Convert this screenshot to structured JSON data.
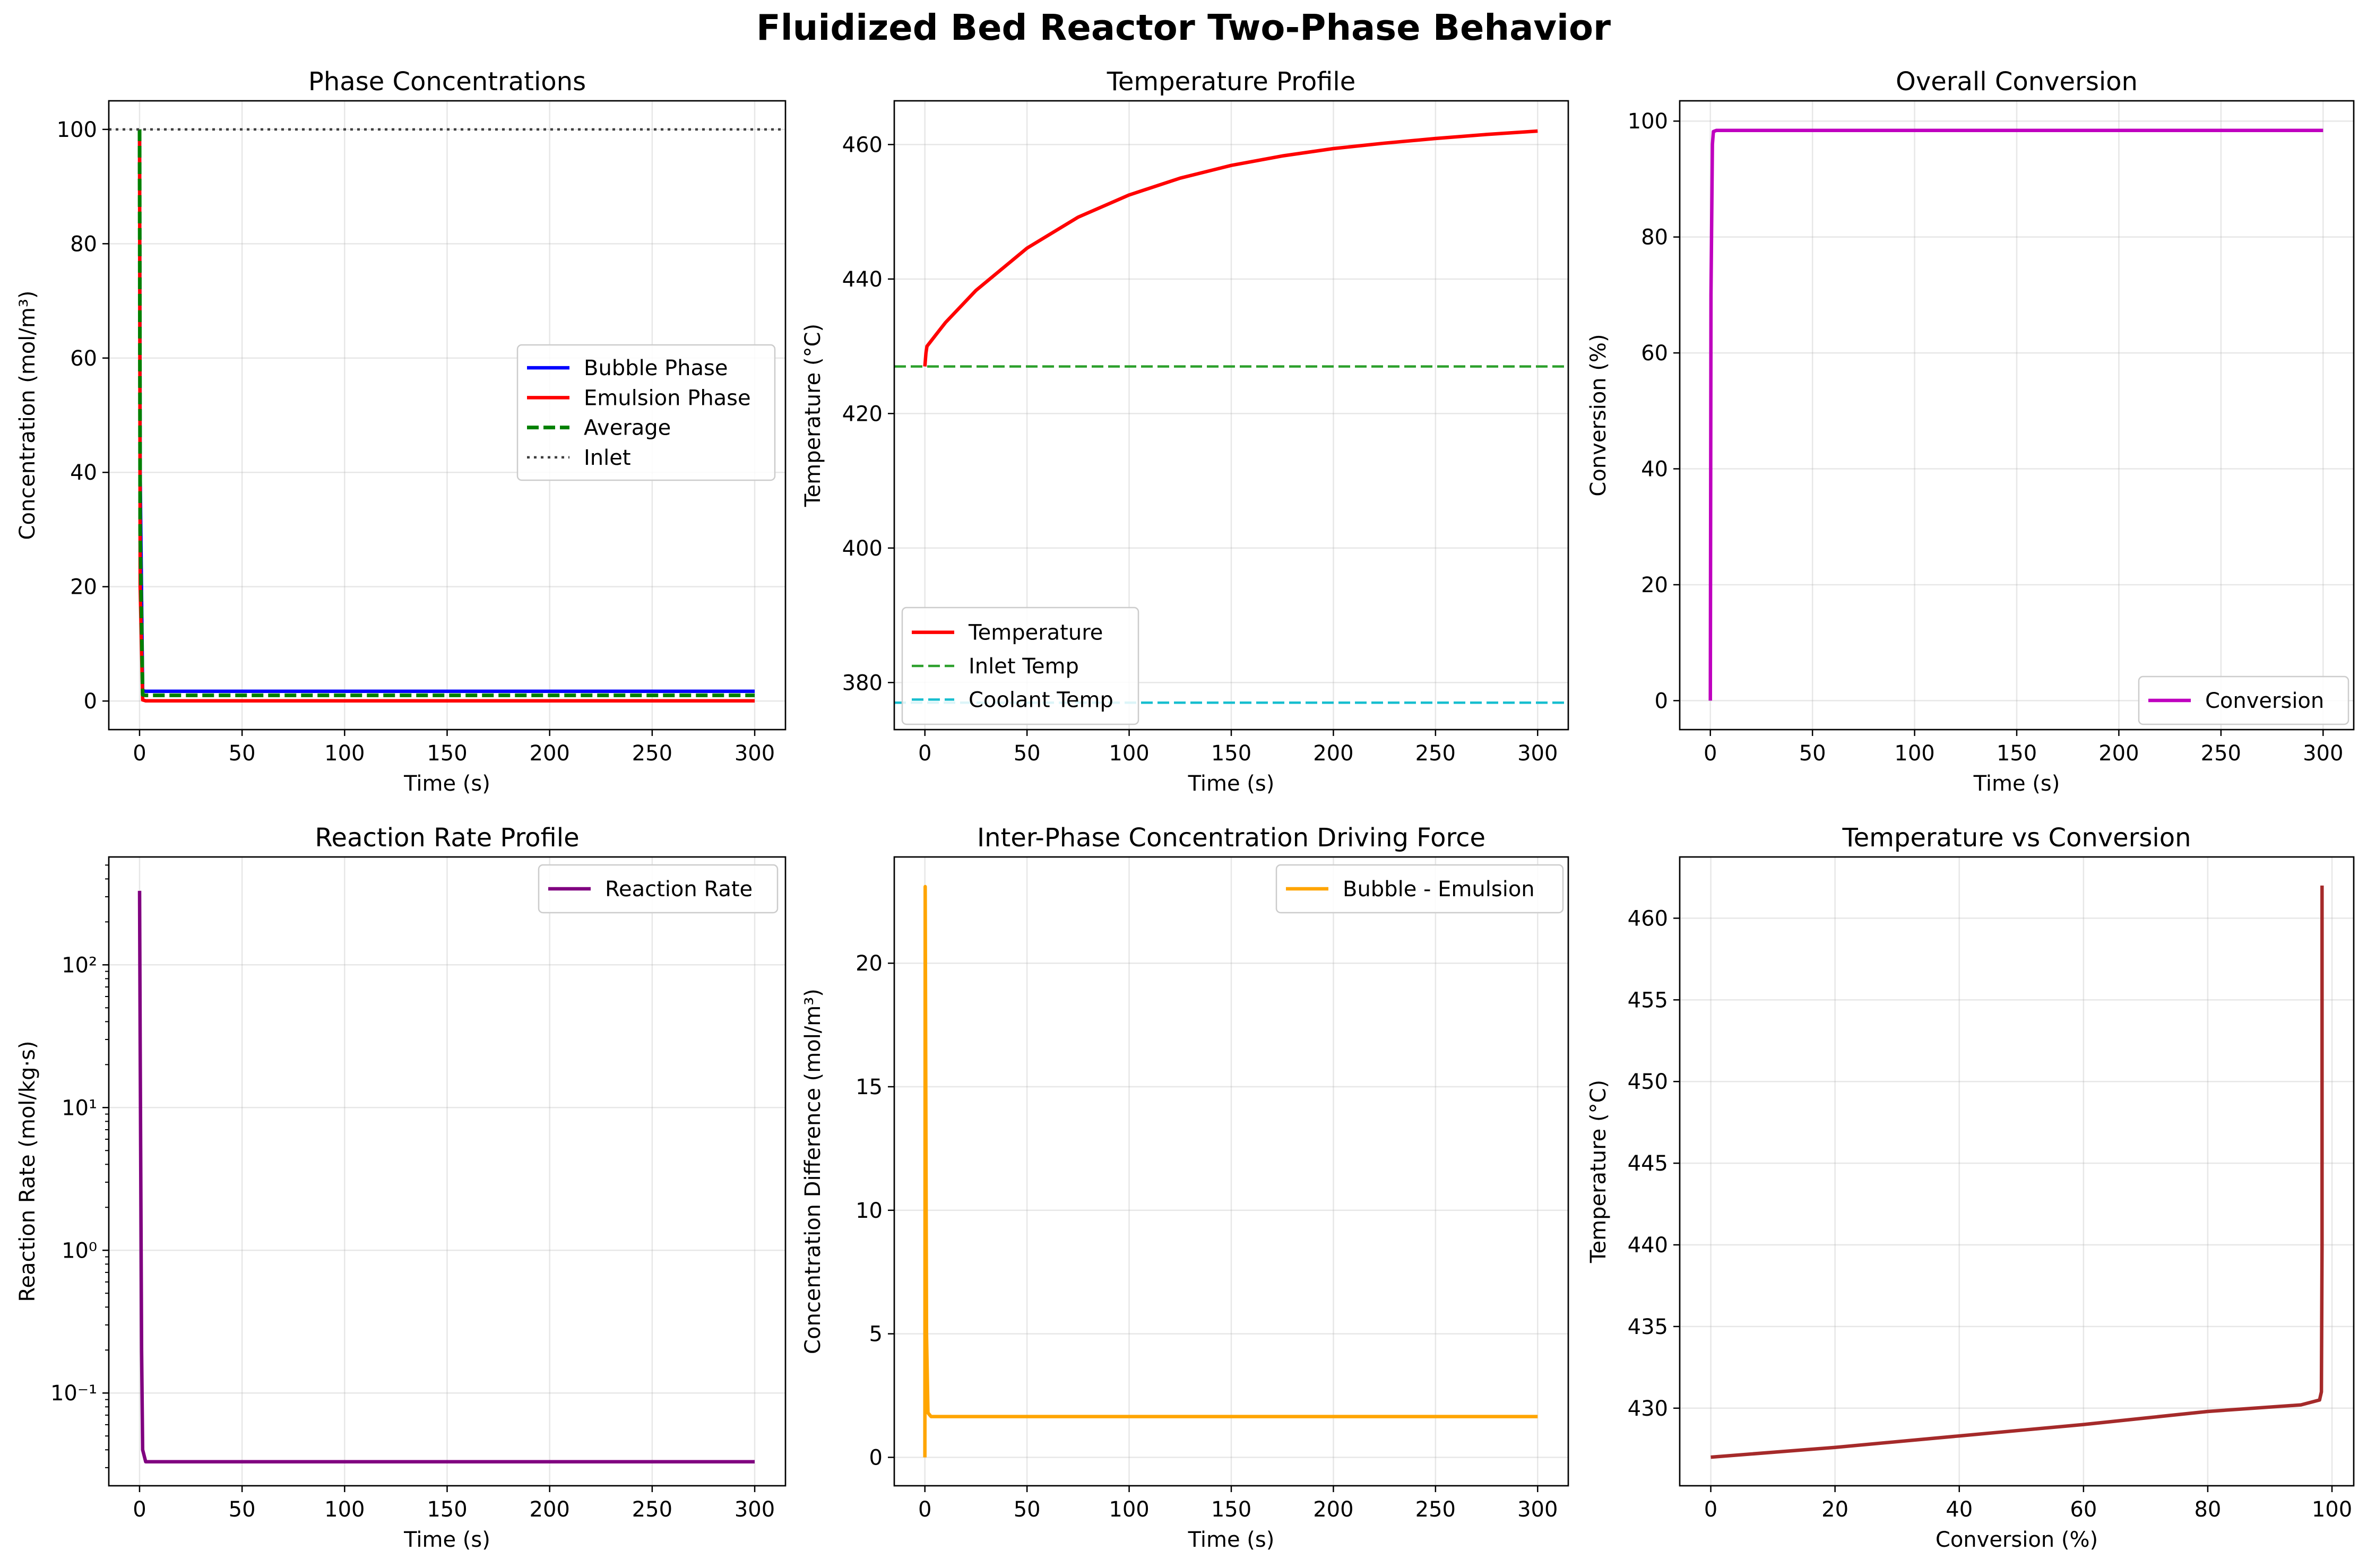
{
  "suptitle": "Fluidized Bed Reactor Two-Phase Behavior",
  "chart_data": [
    {
      "type": "line",
      "title": "Phase Concentrations",
      "xlabel": "Time (s)",
      "ylabel": "Concentration (mol/m³)",
      "xlim": [
        -15,
        315
      ],
      "ylim": [
        -5,
        105
      ],
      "xticks": [
        0,
        50,
        100,
        150,
        200,
        250,
        300
      ],
      "yticks": [
        0,
        20,
        40,
        60,
        80,
        100
      ],
      "grid": true,
      "legend_position": "center-right",
      "series": [
        {
          "name": "Bubble Phase",
          "color": "#0000ff",
          "style": "solid",
          "x": [
            0,
            0.3,
            1.5,
            3,
            300
          ],
          "y": [
            100,
            40,
            1.8,
            1.7,
            1.7
          ]
        },
        {
          "name": "Emulsion Phase",
          "color": "#ff0000",
          "style": "solid",
          "x": [
            0,
            0.3,
            1.5,
            3,
            300
          ],
          "y": [
            100,
            20,
            0.2,
            0.04,
            0.04
          ]
        },
        {
          "name": "Average",
          "color": "#008000",
          "style": "dashed",
          "x": [
            0,
            0.3,
            1.5,
            3,
            300
          ],
          "y": [
            100,
            30,
            1.1,
            1.0,
            1.0
          ]
        },
        {
          "name": "Inlet",
          "color": "#404040",
          "style": "dotted",
          "x": [
            -15,
            315
          ],
          "y": [
            100,
            100
          ]
        }
      ]
    },
    {
      "type": "line",
      "title": "Temperature Profile",
      "xlabel": "Time (s)",
      "ylabel": "Temperature (°C)",
      "xlim": [
        -15,
        315
      ],
      "ylim": [
        373,
        466.5
      ],
      "xticks": [
        0,
        50,
        100,
        150,
        200,
        250,
        300
      ],
      "yticks": [
        380,
        400,
        420,
        440,
        460
      ],
      "grid": true,
      "legend_position": "lower-left",
      "series": [
        {
          "name": "Temperature",
          "color": "#ff0000",
          "style": "solid",
          "x": [
            0,
            0.5,
            1,
            10,
            25,
            50,
            75,
            100,
            125,
            150,
            175,
            200,
            225,
            250,
            275,
            300
          ],
          "y": [
            427,
            429,
            430,
            433.5,
            438.3,
            444.6,
            449.2,
            452.5,
            455,
            456.9,
            458.3,
            459.4,
            460.2,
            460.9,
            461.5,
            462
          ]
        },
        {
          "name": "Inlet Temp",
          "color": "#2ca02c",
          "style": "dashed",
          "x": [
            -15,
            315
          ],
          "y": [
            427,
            427
          ]
        },
        {
          "name": "Coolant Temp",
          "color": "#17becf",
          "style": "dashed",
          "x": [
            -15,
            315
          ],
          "y": [
            377,
            377
          ]
        }
      ]
    },
    {
      "type": "line",
      "title": "Overall Conversion",
      "xlabel": "Time (s)",
      "ylabel": "Conversion (%)",
      "xlim": [
        -15,
        315
      ],
      "ylim": [
        -5,
        103.5
      ],
      "xticks": [
        0,
        50,
        100,
        150,
        200,
        250,
        300
      ],
      "yticks": [
        0,
        20,
        40,
        60,
        80,
        100
      ],
      "grid": true,
      "legend_position": "lower-right",
      "series": [
        {
          "name": "Conversion",
          "color": "#bf00bf",
          "style": "solid",
          "x": [
            0,
            0.3,
            1,
            1.5,
            3,
            300
          ],
          "y": [
            0,
            70,
            96,
            98.2,
            98.4,
            98.4
          ]
        }
      ]
    },
    {
      "type": "line",
      "title": "Reaction Rate Profile",
      "xlabel": "Time (s)",
      "ylabel": "Reaction Rate (mol/kg·s)",
      "xlim": [
        -15,
        315
      ],
      "ylim": [
        0.0224,
        570
      ],
      "y_scale": "log",
      "xticks": [
        0,
        50,
        100,
        150,
        200,
        250,
        300
      ],
      "yticks": [
        0.1,
        1,
        10,
        100
      ],
      "ytick_labels": [
        "10⁻¹",
        "10⁰",
        "10¹",
        "10²"
      ],
      "grid": true,
      "legend_position": "upper-right",
      "series": [
        {
          "name": "Reaction Rate",
          "color": "#800080",
          "style": "solid",
          "x": [
            0,
            0.3,
            0.7,
            1,
            1.5,
            3,
            300
          ],
          "y": [
            330,
            30,
            1.5,
            0.2,
            0.04,
            0.033,
            0.033
          ]
        }
      ]
    },
    {
      "type": "line",
      "title": "Inter-Phase Concentration Driving Force",
      "xlabel": "Time (s)",
      "ylabel": "Concentration Difference (mol/m³)",
      "xlim": [
        -15,
        315
      ],
      "ylim": [
        -1.15,
        24.3
      ],
      "xticks": [
        0,
        50,
        100,
        150,
        200,
        250,
        300
      ],
      "yticks": [
        0,
        5,
        10,
        15,
        20
      ],
      "grid": true,
      "legend_position": "upper-right",
      "series": [
        {
          "name": "Bubble - Emulsion",
          "color": "#ffa500",
          "style": "solid",
          "x": [
            0,
            0.15,
            0.8,
            1.5,
            3,
            300
          ],
          "y": [
            0,
            23.1,
            5,
            1.8,
            1.65,
            1.65
          ]
        }
      ]
    },
    {
      "type": "line",
      "title": "Temperature vs Conversion",
      "xlabel": "Conversion (%)",
      "ylabel": "Temperature (°C)",
      "xlim": [
        -5,
        103.5
      ],
      "ylim": [
        425.25,
        463.75
      ],
      "xticks": [
        0,
        20,
        40,
        60,
        80,
        100
      ],
      "yticks": [
        430,
        435,
        440,
        445,
        450,
        455,
        460
      ],
      "grid": true,
      "series": [
        {
          "name": "",
          "color": "#a52a2a",
          "style": "solid",
          "x": [
            0,
            20,
            40,
            60,
            80,
            95,
            98,
            98.3,
            98.4,
            98.4
          ],
          "y": [
            427,
            427.6,
            428.3,
            429,
            429.8,
            430.2,
            430.5,
            431,
            440,
            462
          ]
        }
      ]
    }
  ]
}
